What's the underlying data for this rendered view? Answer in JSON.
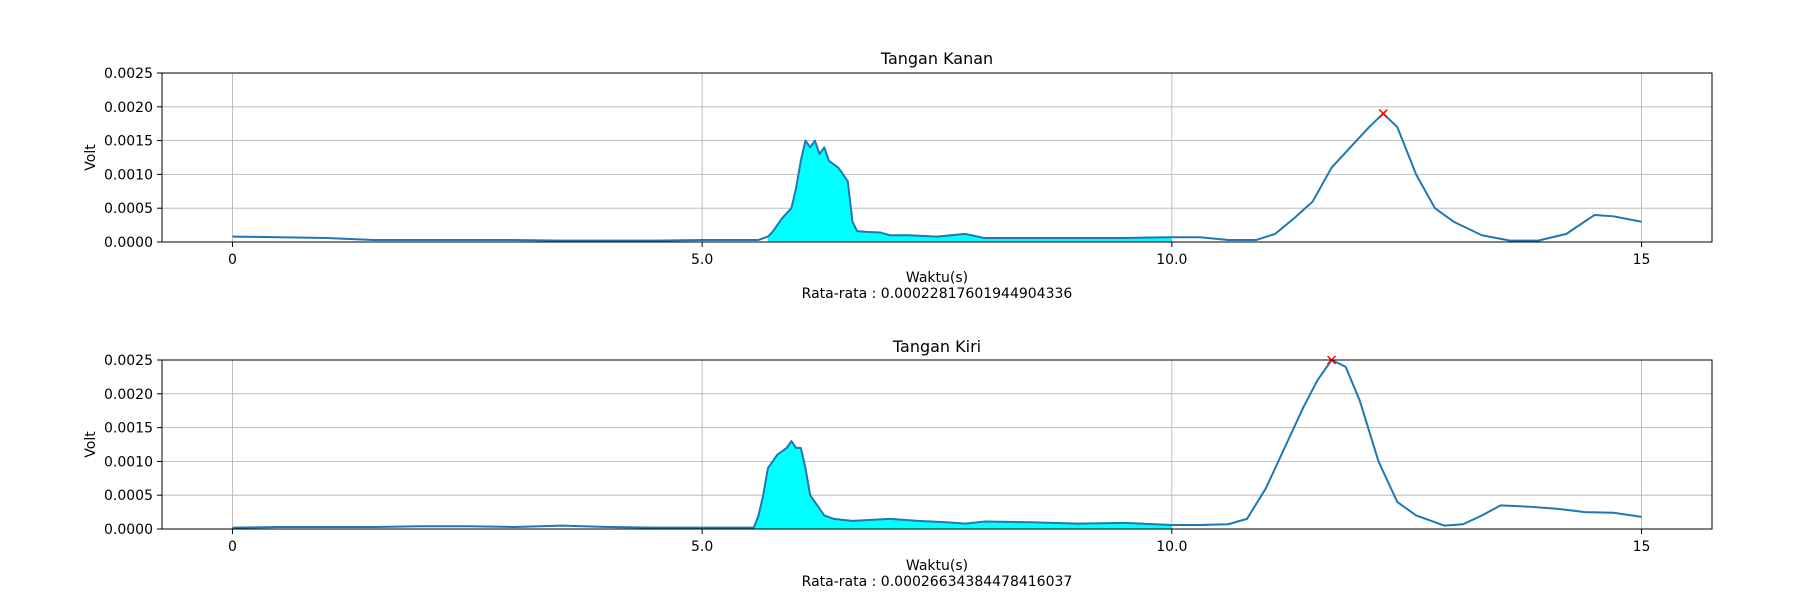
{
  "chart_data": [
    {
      "type": "line",
      "title": "Tangan Kanan",
      "xlabel": "Waktu(s)",
      "ylabel": "Volt",
      "caption": "Rata-rata : 0.00022817601944904336",
      "xlim": [
        -0.75,
        15.75
      ],
      "ylim": [
        0,
        0.0025
      ],
      "xticks": [
        0,
        5,
        10,
        15
      ],
      "xtick_labels": [
        "0",
        "5.0",
        "10.0",
        "15"
      ],
      "yticks": [
        0,
        0.0005,
        0.001,
        0.0015,
        0.002,
        0.0025
      ],
      "ytick_labels": [
        "0.0000",
        "0.0005",
        "0.0010",
        "0.0015",
        "0.0020",
        "0.0025"
      ],
      "grid": true,
      "line_color": "#1f77b4",
      "fill_color": "#00ffff",
      "marker_color": "#ff0000",
      "fill_range": [
        5.7,
        10.0
      ],
      "peak": [
        12.25,
        0.0019
      ],
      "series": [
        {
          "x": [
            0,
            0.5,
            1.0,
            1.5,
            2.0,
            2.5,
            3.0,
            3.5,
            4.0,
            4.5,
            5.0,
            5.5,
            5.6,
            5.7,
            5.75,
            5.85,
            5.95,
            6.0,
            6.05,
            6.1,
            6.15,
            6.2,
            6.25,
            6.3,
            6.35,
            6.45,
            6.55,
            6.6,
            6.65,
            6.75,
            6.9,
            7.0,
            7.2,
            7.5,
            7.8,
            8.0,
            8.5,
            9.0,
            9.5,
            10.0,
            10.3,
            10.6,
            10.9,
            11.1,
            11.3,
            11.5,
            11.7,
            11.9,
            12.1,
            12.25,
            12.4,
            12.6,
            12.8,
            13.0,
            13.3,
            13.6,
            13.9,
            14.2,
            14.5,
            14.7,
            15.0
          ],
          "y": [
            8e-05,
            7e-05,
            6e-05,
            3e-05,
            3e-05,
            3e-05,
            3e-05,
            2e-05,
            2e-05,
            2e-05,
            3e-05,
            3e-05,
            3e-05,
            8e-05,
            0.00015,
            0.00035,
            0.0005,
            0.0008,
            0.0012,
            0.0015,
            0.0014,
            0.0015,
            0.0013,
            0.0014,
            0.0012,
            0.0011,
            0.0009,
            0.0003,
            0.00016,
            0.00015,
            0.00014,
            0.0001,
            0.0001,
            8e-05,
            0.00012,
            6e-05,
            6e-05,
            6e-05,
            6e-05,
            7e-05,
            7e-05,
            3e-05,
            3e-05,
            0.00012,
            0.00035,
            0.0006,
            0.0011,
            0.0014,
            0.0017,
            0.0019,
            0.0017,
            0.001,
            0.0005,
            0.0003,
            0.0001,
            2e-05,
            2e-05,
            0.00012,
            0.0004,
            0.00038,
            0.0003
          ]
        }
      ]
    },
    {
      "type": "line",
      "title": "Tangan Kiri",
      "xlabel": "Waktu(s)",
      "ylabel": "Volt",
      "caption": "Rata-rata : 0.00026634384478416037",
      "xlim": [
        -0.75,
        15.75
      ],
      "ylim": [
        0,
        0.0025
      ],
      "xticks": [
        0,
        5,
        10,
        15
      ],
      "xtick_labels": [
        "0",
        "5.0",
        "10.0",
        "15"
      ],
      "yticks": [
        0,
        0.0005,
        0.001,
        0.0015,
        0.002,
        0.0025
      ],
      "ytick_labels": [
        "0.0000",
        "0.0005",
        "0.0010",
        "0.0015",
        "0.0020",
        "0.0025"
      ],
      "grid": true,
      "line_color": "#1f77b4",
      "fill_color": "#00ffff",
      "marker_color": "#ff0000",
      "fill_range": [
        5.55,
        10.0
      ],
      "peak": [
        11.7,
        0.0025
      ],
      "series": [
        {
          "x": [
            0,
            0.5,
            1.0,
            1.5,
            2.0,
            2.5,
            3.0,
            3.5,
            4.0,
            4.5,
            5.0,
            5.4,
            5.55,
            5.6,
            5.65,
            5.7,
            5.75,
            5.8,
            5.9,
            5.95,
            6.0,
            6.05,
            6.1,
            6.15,
            6.2,
            6.3,
            6.4,
            6.6,
            7.0,
            7.3,
            7.6,
            7.8,
            8.0,
            8.5,
            9.0,
            9.5,
            10.0,
            10.3,
            10.6,
            10.8,
            11.0,
            11.2,
            11.4,
            11.55,
            11.7,
            11.85,
            12.0,
            12.2,
            12.4,
            12.6,
            12.9,
            13.1,
            13.3,
            13.5,
            13.8,
            14.1,
            14.4,
            14.7,
            15.0
          ],
          "y": [
            2e-05,
            3e-05,
            3e-05,
            3e-05,
            4e-05,
            4e-05,
            3e-05,
            5e-05,
            3e-05,
            2e-05,
            2e-05,
            2e-05,
            2e-05,
            0.0002,
            0.0005,
            0.0009,
            0.001,
            0.0011,
            0.0012,
            0.0013,
            0.0012,
            0.0012,
            0.0009,
            0.0005,
            0.0004,
            0.0002,
            0.00015,
            0.00012,
            0.00015,
            0.00012,
            0.0001,
            8e-05,
            0.00011,
            0.0001,
            8e-05,
            9e-05,
            6e-05,
            6e-05,
            7e-05,
            0.00015,
            0.0006,
            0.0012,
            0.0018,
            0.0022,
            0.0025,
            0.0024,
            0.0019,
            0.001,
            0.0004,
            0.0002,
            5e-05,
            7e-05,
            0.0002,
            0.00035,
            0.00033,
            0.0003,
            0.00025,
            0.00024,
            0.00018
          ]
        }
      ]
    }
  ]
}
